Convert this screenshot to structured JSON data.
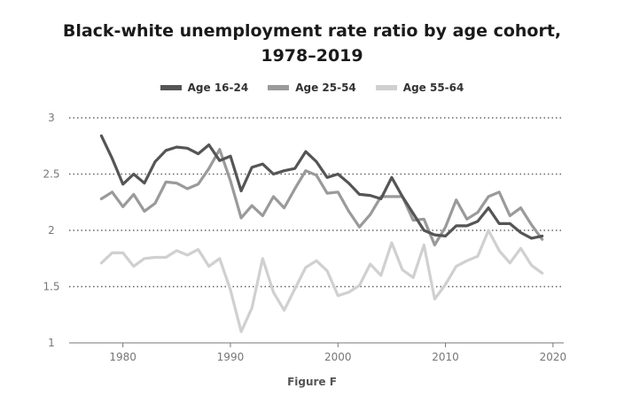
{
  "chart_data": {
    "type": "line",
    "title_line1": "Black-white unemployment rate ratio by age cohort,",
    "title_line2": "1978–2019",
    "caption": "Figure F",
    "xlim": [
      1975,
      2021
    ],
    "ylim": [
      1,
      3
    ],
    "xticks": [
      1980,
      1990,
      2000,
      2010,
      2020
    ],
    "yticks": [
      1,
      1.5,
      2,
      2.5,
      3
    ],
    "ytick_labels": [
      "1",
      "1.5",
      "2",
      "2.5",
      "3"
    ],
    "grid": "horizontal dotted",
    "legend_position": "top-center",
    "x": [
      1978,
      1979,
      1980,
      1981,
      1982,
      1983,
      1984,
      1985,
      1986,
      1987,
      1988,
      1989,
      1990,
      1991,
      1992,
      1993,
      1994,
      1995,
      1996,
      1997,
      1998,
      1999,
      2000,
      2001,
      2002,
      2003,
      2004,
      2005,
      2006,
      2007,
      2008,
      2009,
      2010,
      2011,
      2012,
      2013,
      2014,
      2015,
      2016,
      2017,
      2018,
      2019
    ],
    "series": [
      {
        "name": "Age 16-24",
        "color": "#555555",
        "values": [
          2.84,
          2.64,
          2.41,
          2.5,
          2.42,
          2.61,
          2.71,
          2.74,
          2.73,
          2.68,
          2.76,
          2.62,
          2.66,
          2.35,
          2.56,
          2.59,
          2.5,
          2.53,
          2.55,
          2.7,
          2.61,
          2.47,
          2.5,
          2.42,
          2.32,
          2.31,
          2.28,
          2.47,
          2.3,
          2.15,
          2.0,
          1.96,
          1.95,
          2.04,
          2.04,
          2.08,
          2.2,
          2.06,
          2.06,
          1.98,
          1.93,
          1.95
        ]
      },
      {
        "name": "Age 25-54",
        "color": "#9a9a9a",
        "values": [
          2.28,
          2.34,
          2.21,
          2.32,
          2.17,
          2.24,
          2.43,
          2.42,
          2.37,
          2.41,
          2.55,
          2.72,
          2.44,
          2.11,
          2.22,
          2.13,
          2.3,
          2.2,
          2.37,
          2.53,
          2.49,
          2.33,
          2.34,
          2.17,
          2.03,
          2.14,
          2.3,
          2.3,
          2.3,
          2.09,
          2.1,
          1.87,
          2.03,
          2.27,
          2.1,
          2.16,
          2.3,
          2.34,
          2.13,
          2.2,
          2.05,
          1.92
        ]
      },
      {
        "name": "Age 55-64",
        "color": "#d0d0d0",
        "values": [
          1.71,
          1.8,
          1.8,
          1.68,
          1.75,
          1.76,
          1.76,
          1.82,
          1.78,
          1.83,
          1.68,
          1.75,
          1.47,
          1.1,
          1.31,
          1.75,
          1.45,
          1.29,
          1.48,
          1.67,
          1.73,
          1.64,
          1.42,
          1.45,
          1.51,
          1.7,
          1.6,
          1.89,
          1.65,
          1.58,
          1.87,
          1.39,
          1.52,
          1.68,
          1.73,
          1.77,
          2.0,
          1.82,
          1.71,
          1.84,
          1.69,
          1.62
        ]
      }
    ]
  }
}
